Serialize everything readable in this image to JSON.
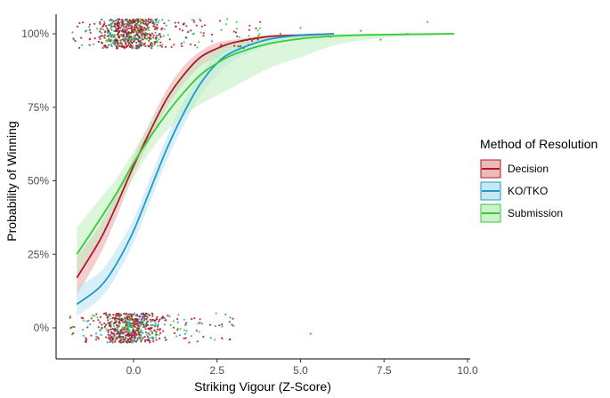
{
  "chart_data": {
    "type": "line",
    "subtype": "logistic regression curves with confidence bands and jittered binary outcome points",
    "title": "",
    "xlabel": "Striking Vigour (Z-Score)",
    "ylabel": "Probability of Winning",
    "xlim": [
      -2.0,
      10.0
    ],
    "ylim": [
      -0.1,
      1.05
    ],
    "x_ticks": [
      0.0,
      2.5,
      5.0,
      7.5,
      10.0
    ],
    "x_tick_labels": [
      "0.0",
      "2.5",
      "5.0",
      "7.5",
      "10.0"
    ],
    "y_ticks": [
      0,
      0.25,
      0.5,
      0.75,
      1.0
    ],
    "y_tick_labels": [
      "0%",
      "25%",
      "50%",
      "75%",
      "100%"
    ],
    "grid": false,
    "legend": {
      "title": "Method of Resolution",
      "position": "right",
      "entries": [
        "Decision",
        "KO/TKO",
        "Submission"
      ]
    },
    "series": [
      {
        "name": "Decision",
        "color": "#b2182b",
        "fill": "#e8a8a8",
        "x": [
          -1.7,
          -1.0,
          -0.5,
          0.0,
          0.5,
          1.0,
          1.5,
          2.0,
          2.5,
          3.0,
          4.0,
          5.0,
          6.0
        ],
        "values": [
          0.17,
          0.3,
          0.42,
          0.55,
          0.67,
          0.78,
          0.86,
          0.92,
          0.95,
          0.97,
          0.99,
          0.995,
          1.0
        ],
        "ci_low": [
          0.11,
          0.25,
          0.38,
          0.52,
          0.64,
          0.75,
          0.83,
          0.89,
          0.92,
          0.95,
          0.98,
          0.99,
          0.995
        ],
        "ci_high": [
          0.24,
          0.35,
          0.46,
          0.58,
          0.7,
          0.81,
          0.89,
          0.94,
          0.97,
          0.98,
          0.995,
          1.0,
          1.0
        ]
      },
      {
        "name": "KO/TKO",
        "color": "#1f9bc9",
        "fill": "#b8e2f0",
        "x": [
          -1.7,
          -1.0,
          -0.5,
          0.0,
          0.5,
          1.0,
          1.5,
          2.0,
          2.5,
          3.0,
          4.0,
          5.0,
          6.0
        ],
        "values": [
          0.08,
          0.14,
          0.22,
          0.33,
          0.47,
          0.61,
          0.73,
          0.83,
          0.9,
          0.94,
          0.98,
          0.995,
          1.0
        ],
        "ci_low": [
          0.04,
          0.1,
          0.18,
          0.29,
          0.43,
          0.57,
          0.69,
          0.79,
          0.86,
          0.91,
          0.96,
          0.985,
          0.995
        ],
        "ci_high": [
          0.14,
          0.19,
          0.27,
          0.37,
          0.51,
          0.65,
          0.77,
          0.86,
          0.93,
          0.96,
          0.99,
          1.0,
          1.0
        ]
      },
      {
        "name": "Submission",
        "color": "#33cc33",
        "fill": "#bfeebf",
        "x": [
          -1.7,
          -1.0,
          -0.5,
          0.0,
          0.5,
          1.0,
          1.5,
          2.0,
          2.5,
          3.0,
          4.0,
          5.0,
          6.0,
          7.0,
          8.0,
          9.0,
          9.6
        ],
        "values": [
          0.25,
          0.37,
          0.46,
          0.56,
          0.65,
          0.73,
          0.8,
          0.86,
          0.9,
          0.93,
          0.965,
          0.983,
          0.992,
          0.996,
          0.998,
          0.999,
          1.0
        ],
        "ci_low": [
          0.18,
          0.31,
          0.41,
          0.51,
          0.6,
          0.67,
          0.72,
          0.76,
          0.79,
          0.82,
          0.88,
          0.92,
          0.96,
          0.98,
          0.99,
          0.995,
          0.997
        ],
        "ci_high": [
          0.34,
          0.44,
          0.51,
          0.6,
          0.7,
          0.79,
          0.87,
          0.92,
          0.95,
          0.97,
          0.99,
          0.997,
          1.0,
          1.0,
          1.0,
          1.0,
          1.0
        ]
      }
    ],
    "points": {
      "description": "jittered binary outcomes (win = 100%, loss = 0%)",
      "winners_x_range": [
        -1.9,
        9.5
      ],
      "losers_x_range": [
        -1.9,
        5.3
      ],
      "dense_x_range": [
        -1.2,
        1.5
      ]
    }
  }
}
